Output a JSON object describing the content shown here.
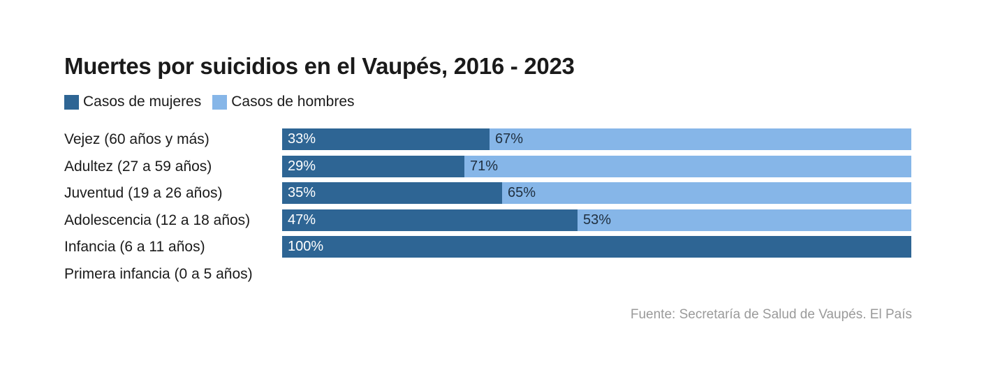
{
  "chart_data": {
    "type": "bar",
    "orientation": "horizontal",
    "stacked": true,
    "title": "Muertes por suicidios en el Vaupés, 2016 - 2023",
    "categories": [
      "Vejez (60 años y más)",
      "Adultez (27 a 59 años)",
      "Juventud (19 a 26 años)",
      "Adolescencia (12 a 18 años)",
      "Infancia (6 a 11 años)",
      "Primera infancia (0 a 5 años)"
    ],
    "series": [
      {
        "name": "Casos de mujeres",
        "values": [
          33,
          29,
          35,
          47,
          100,
          null
        ],
        "color": "#2e6594"
      },
      {
        "name": "Casos de hombres",
        "values": [
          67,
          71,
          65,
          53,
          0,
          null
        ],
        "color": "#86b6e8"
      }
    ],
    "value_labels": [
      [
        "33%",
        "67%"
      ],
      [
        "29%",
        "71%"
      ],
      [
        "35%",
        "65%"
      ],
      [
        "47%",
        "53%"
      ],
      [
        "100%",
        ""
      ],
      [
        "",
        ""
      ]
    ],
    "xlim": [
      0,
      100
    ],
    "unit": "%",
    "legend_position": "top-left",
    "grid": false,
    "source": "Fuente: Secretaría de Salud de Vaupés. El País"
  }
}
